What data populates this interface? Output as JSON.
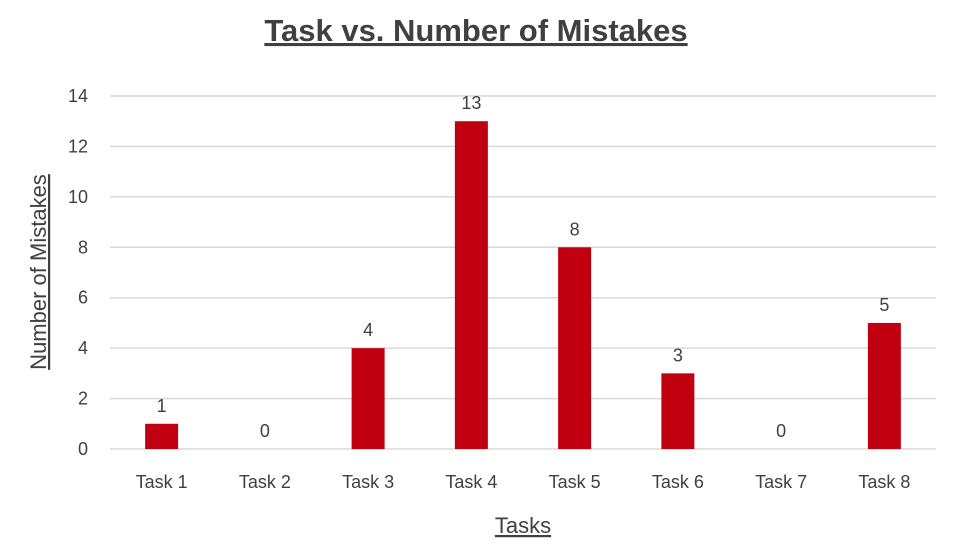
{
  "chart_data": {
    "type": "bar",
    "title": "Task vs. Number of Mistakes",
    "xlabel": "Tasks",
    "ylabel": "Number of Mistakes",
    "categories": [
      "Task 1",
      "Task 2",
      "Task 3",
      "Task 4",
      "Task 5",
      "Task 6",
      "Task 7",
      "Task 8"
    ],
    "values": [
      1,
      0,
      4,
      13,
      8,
      3,
      0,
      5
    ],
    "data_labels": [
      "1",
      "0",
      "4",
      "13",
      "8",
      "3",
      "0",
      "5"
    ],
    "ylim": [
      0,
      14
    ],
    "yticks": [
      "0",
      "2",
      "4",
      "6",
      "8",
      "10",
      "12",
      "14"
    ],
    "grid": true,
    "legend": "none",
    "bar_color": "#c00010"
  }
}
